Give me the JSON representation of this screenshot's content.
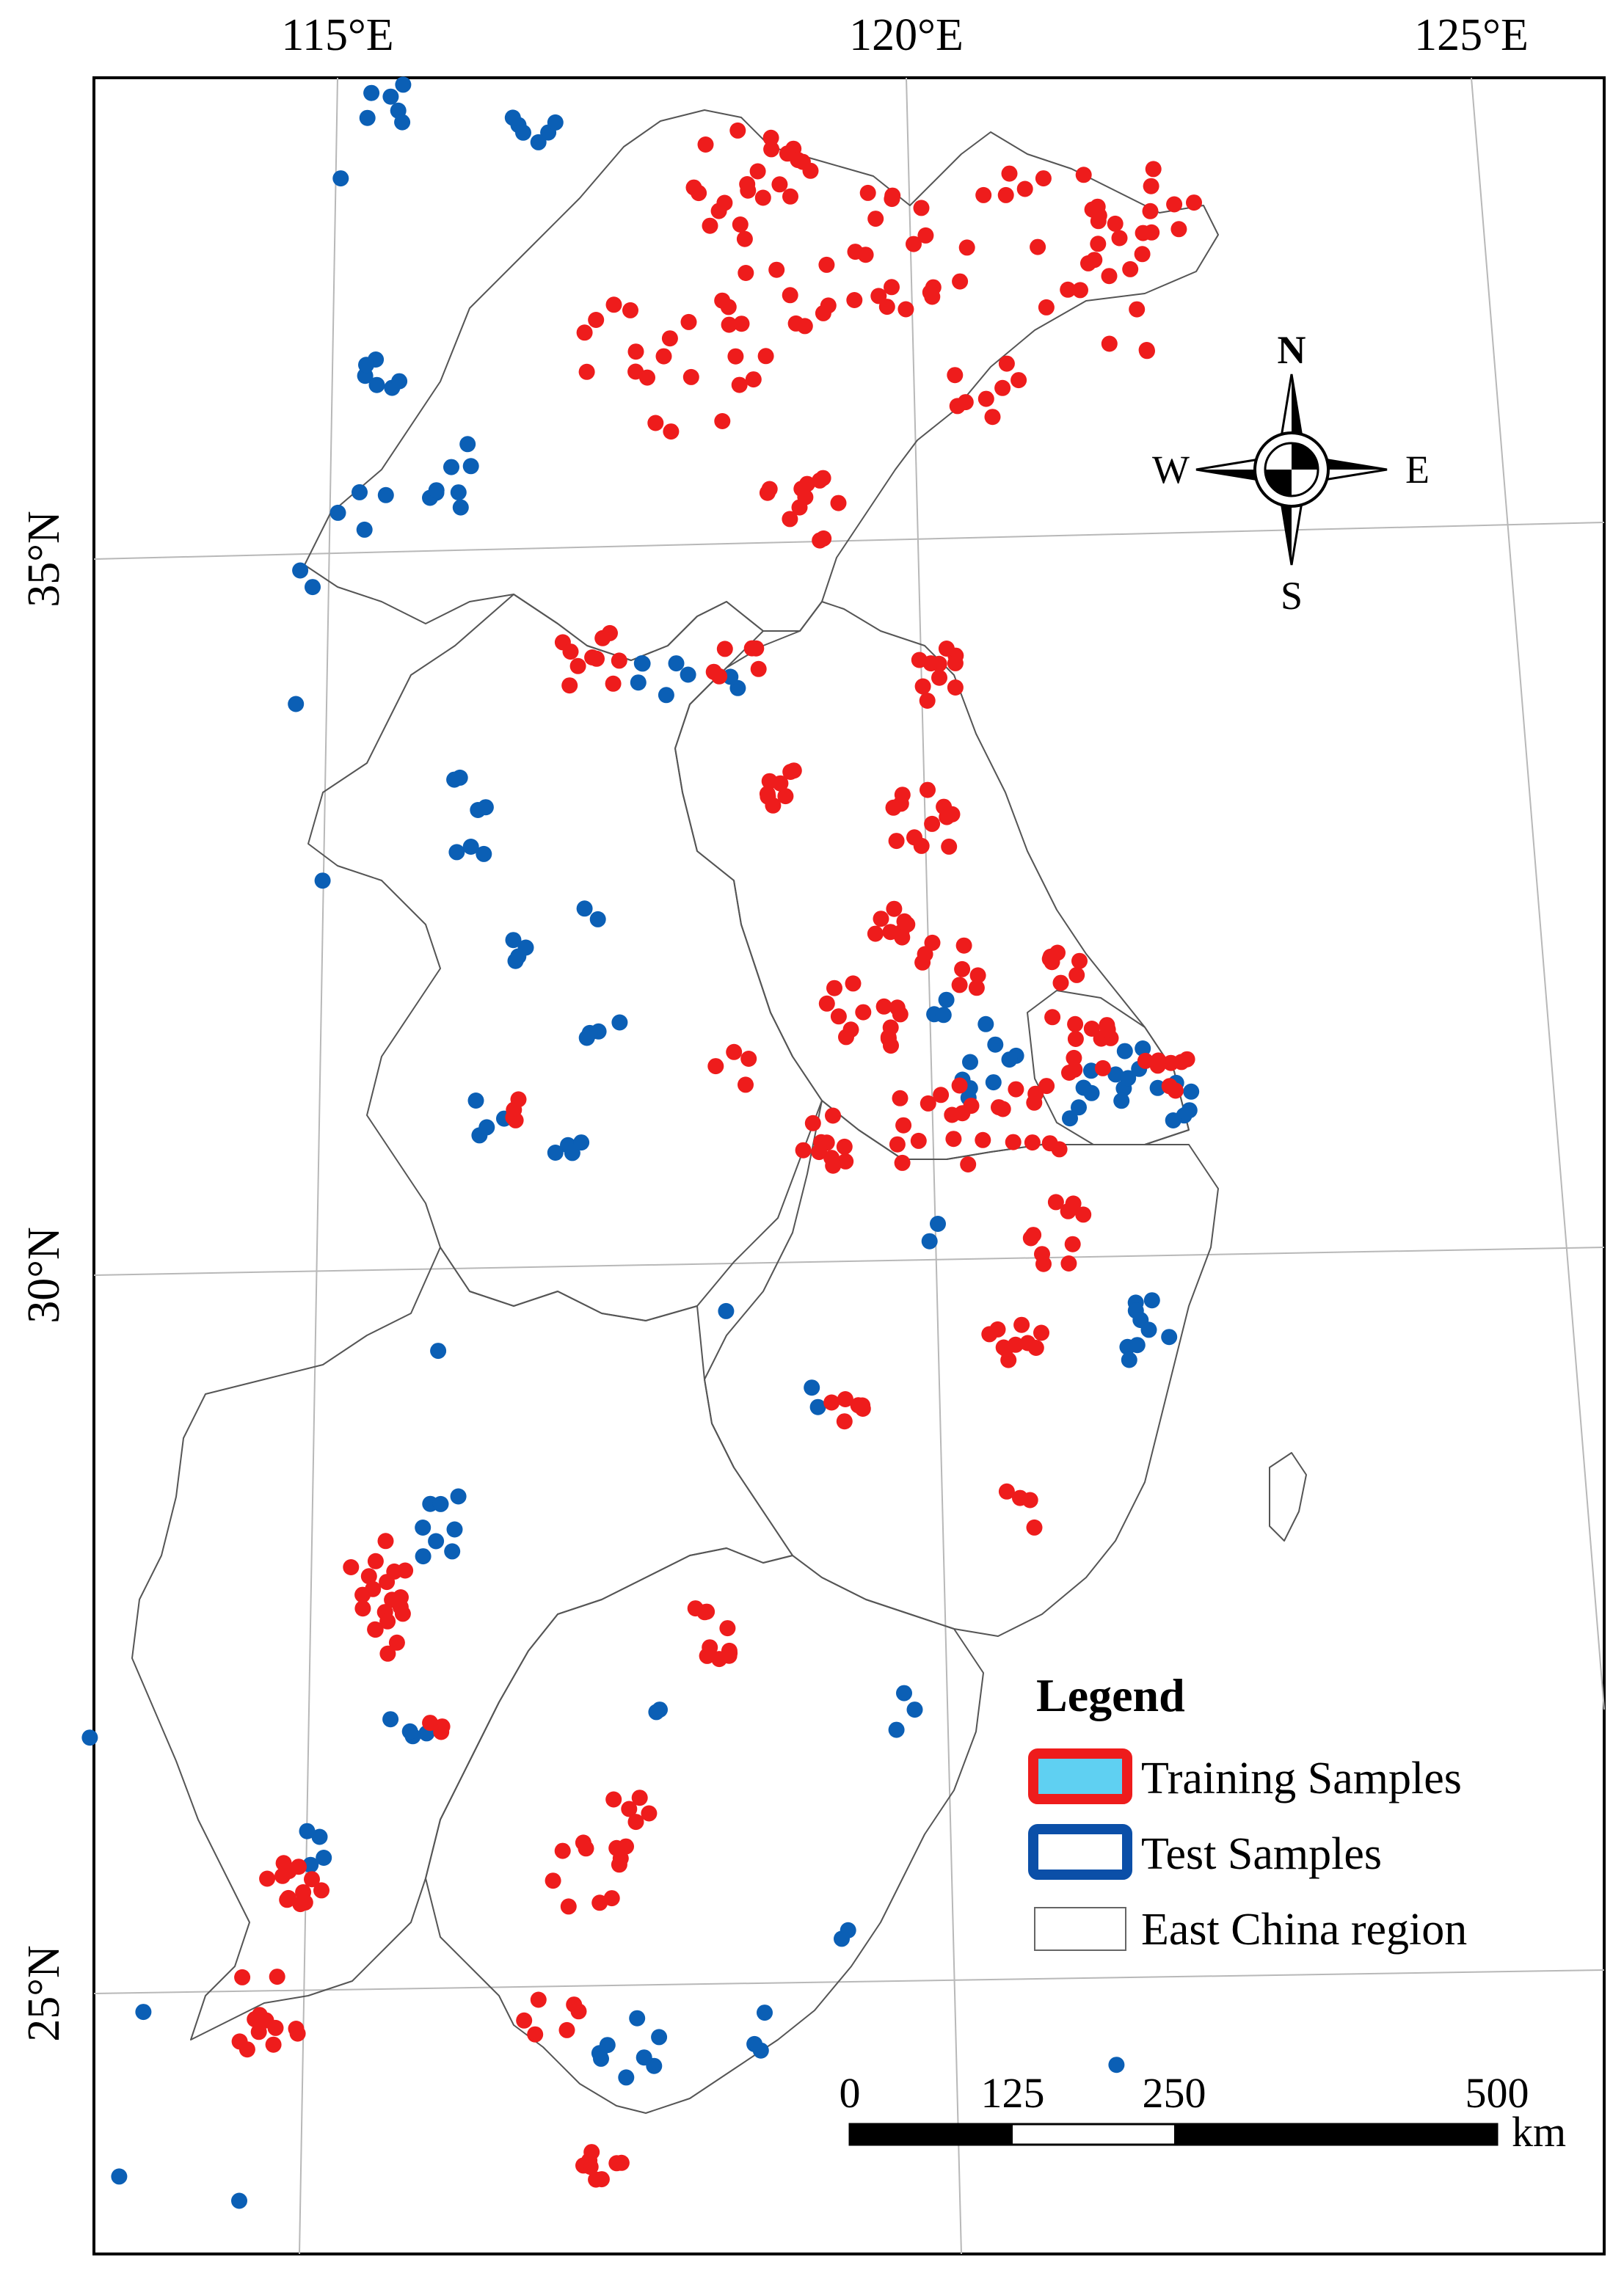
{
  "map": {
    "lon_labels": [
      "115°E",
      "120°E",
      "125°E"
    ],
    "lat_labels": [
      "35°N",
      "30°N",
      "25°N"
    ]
  },
  "compass": {
    "n": "N",
    "s": "S",
    "e": "E",
    "w": "W"
  },
  "legend": {
    "title": "Legend",
    "items": [
      {
        "label": "Training Samples",
        "fill": "#5fd0f2",
        "stroke": "#ee1c1c"
      },
      {
        "label": "Test Samples",
        "fill": "#ffffff",
        "stroke": "#0b4fa8"
      },
      {
        "label": "East China region",
        "fill": "#ffffff",
        "stroke": "#666666"
      }
    ]
  },
  "scalebar": {
    "ticks": [
      "0",
      "125",
      "250",
      "500"
    ],
    "unit": "km"
  },
  "colors": {
    "training": "#ee1c1c",
    "test": "#0b5fb5",
    "boundary": "#555555"
  }
}
